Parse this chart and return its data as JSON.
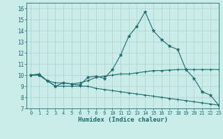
{
  "xlabel": "Humidex (Indice chaleur)",
  "ylabel": "",
  "xlim": [
    -0.5,
    23
  ],
  "ylim": [
    7,
    16.5
  ],
  "xticks": [
    0,
    1,
    2,
    3,
    4,
    5,
    6,
    7,
    8,
    9,
    10,
    11,
    12,
    13,
    14,
    15,
    16,
    17,
    18,
    19,
    20,
    21,
    22,
    23
  ],
  "yticks": [
    7,
    8,
    9,
    10,
    11,
    12,
    13,
    14,
    15,
    16
  ],
  "bg_color": "#c9ece9",
  "grid_color": "#b0cece",
  "line_color": "#1a6b6b",
  "curve1_x": [
    0,
    1,
    2,
    3,
    4,
    5,
    6,
    7,
    8,
    9,
    10,
    11,
    12,
    13,
    14,
    15,
    16,
    17,
    18,
    19,
    20,
    21,
    22,
    23
  ],
  "curve1_y": [
    10.0,
    10.0,
    9.5,
    9.0,
    9.3,
    9.2,
    9.1,
    9.8,
    9.9,
    9.7,
    10.5,
    11.8,
    13.5,
    14.4,
    15.7,
    14.0,
    13.2,
    12.6,
    12.3,
    10.5,
    9.7,
    8.5,
    8.2,
    7.3
  ],
  "curve2_x": [
    0,
    1,
    2,
    3,
    4,
    5,
    6,
    7,
    8,
    9,
    10,
    11,
    12,
    13,
    14,
    15,
    16,
    17,
    18,
    19,
    20,
    21,
    22,
    23
  ],
  "curve2_y": [
    10.0,
    10.1,
    9.5,
    9.3,
    9.3,
    9.2,
    9.3,
    9.5,
    9.8,
    9.9,
    10.0,
    10.1,
    10.1,
    10.2,
    10.3,
    10.4,
    10.4,
    10.45,
    10.5,
    10.5,
    10.5,
    10.5,
    10.5,
    10.5
  ],
  "curve3_x": [
    0,
    1,
    2,
    3,
    4,
    5,
    6,
    7,
    8,
    9,
    10,
    11,
    12,
    13,
    14,
    15,
    16,
    17,
    18,
    19,
    20,
    21,
    22,
    23
  ],
  "curve3_y": [
    10.0,
    10.0,
    9.5,
    9.0,
    9.0,
    9.0,
    9.0,
    9.0,
    8.8,
    8.7,
    8.6,
    8.5,
    8.4,
    8.3,
    8.2,
    8.1,
    8.0,
    7.9,
    7.8,
    7.7,
    7.6,
    7.5,
    7.4,
    7.3
  ]
}
